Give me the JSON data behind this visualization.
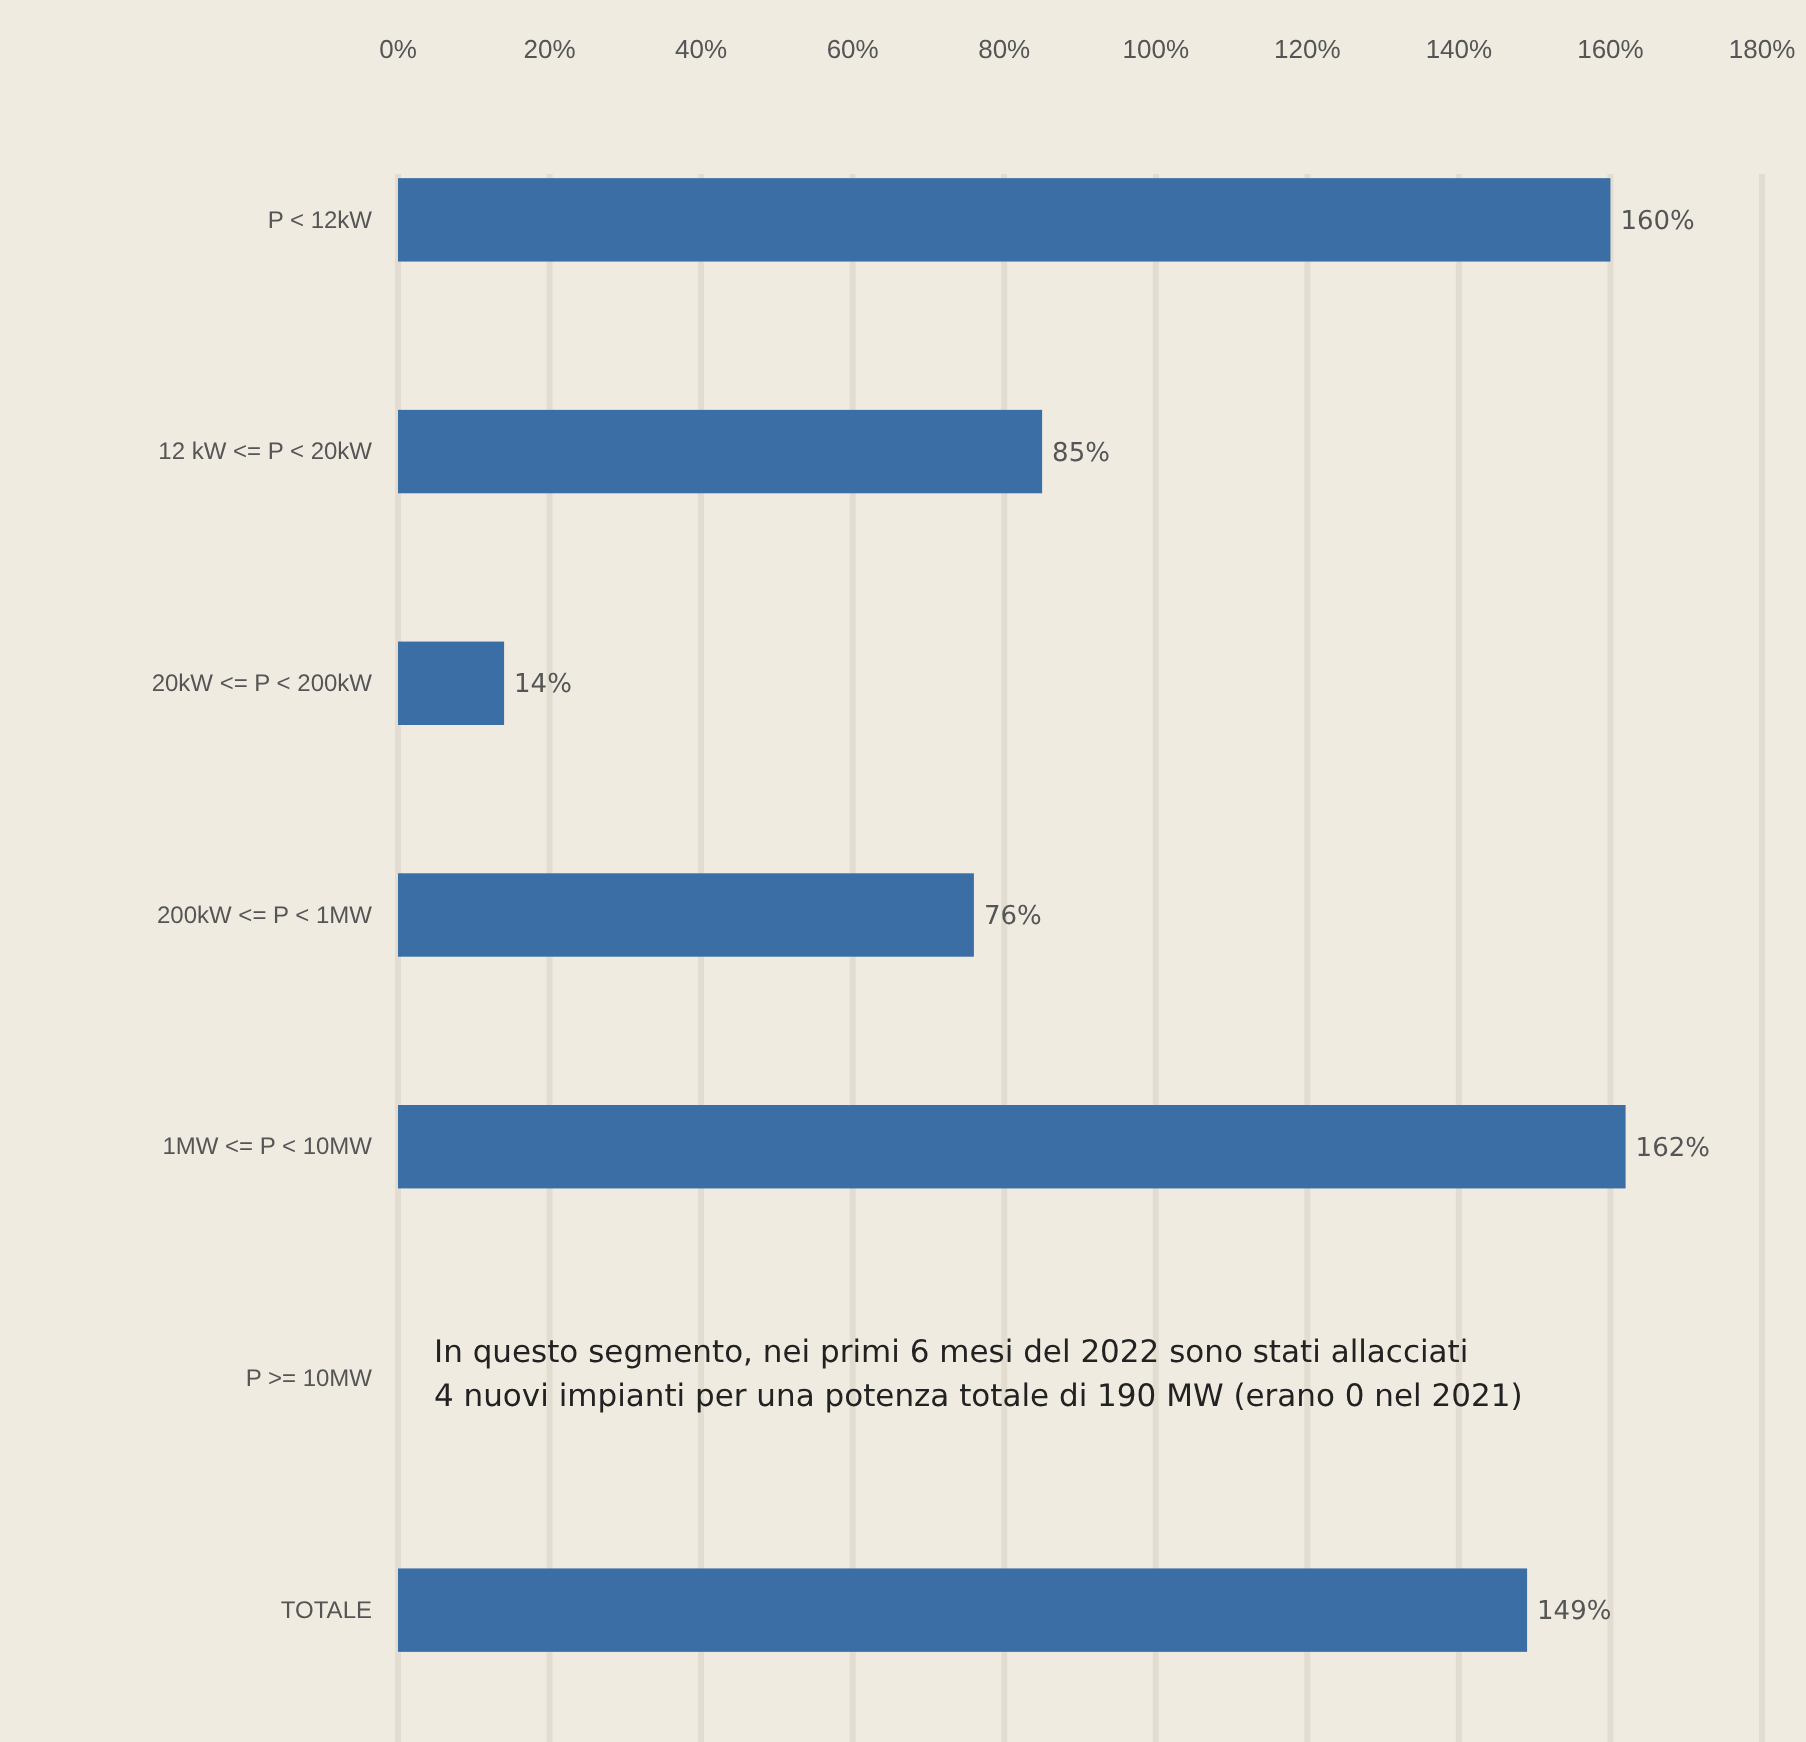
{
  "chart_data": {
    "type": "bar",
    "orientation": "horizontal",
    "categories": [
      "P < 12kW",
      "12 kW <= P < 20kW",
      "20kW <= P < 200kW",
      "200kW <= P < 1MW",
      "1MW <= P < 10MW",
      "P >= 10MW",
      "TOTALE"
    ],
    "values": [
      160,
      85,
      14,
      76,
      162,
      null,
      149
    ],
    "value_labels": [
      "160%",
      "85%",
      "14%",
      "76%",
      "162%",
      null,
      "149%"
    ],
    "color": "#3a6ea5",
    "xlim": [
      0,
      180
    ],
    "xticks": [
      {
        "value": 0,
        "label": "0%"
      },
      {
        "value": 20,
        "label": "20%"
      },
      {
        "value": 40,
        "label": "40%"
      },
      {
        "value": 60,
        "label": "60%"
      },
      {
        "value": 80,
        "label": "80%"
      },
      {
        "value": 100,
        "label": "100%"
      },
      {
        "value": 120,
        "label": "120%"
      },
      {
        "value": 140,
        "label": "140%"
      },
      {
        "value": 160,
        "label": "160%"
      },
      {
        "value": 180,
        "label": "180%"
      }
    ],
    "grid": "x",
    "annotations": [
      "In questo segmento, nei primi 6 mesi del 2022 sono stati allacciati\n4 nuovi impianti per una potenza totale di 190 MW (erano 0 nel 2021)"
    ]
  }
}
